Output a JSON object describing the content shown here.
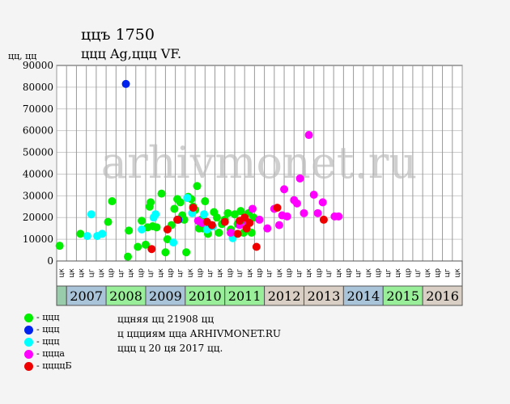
{
  "header": {
    "title": "ццъ 1750",
    "subtitle": "ццц Ag,ццц VF."
  },
  "info": {
    "line1": "ццняя цц 21908 цц",
    "line2": "ц ццциям цца ARHIVMONET.RU",
    "line3": "ццц ц 20 ця 2017 цц."
  },
  "watermark": "arhivmonet.ru",
  "colors": {
    "green": "#00ee00",
    "blue": "#0022ee",
    "cyan": "#00ffff",
    "magenta": "#ff00ff",
    "red": "#ee0000"
  },
  "chart_data": {
    "type": "scatter",
    "ylabel": "цц, цц",
    "ylim": [
      0,
      90000
    ],
    "yticks": [
      0,
      10000,
      20000,
      30000,
      40000,
      50000,
      60000,
      70000,
      80000,
      90000
    ],
    "ytick_labels": [
      "0",
      "10000",
      "20000",
      "30000",
      "40000",
      "50000",
      "60000",
      "70000",
      "80000",
      "90000"
    ],
    "quarter_labels": [
      "цк",
      "цк",
      "цк",
      "цг",
      "цк",
      "цр",
      "цг",
      "цк",
      "цр",
      "цг",
      "цк",
      "цр",
      "цг",
      "цк",
      "цр",
      "цг",
      "цк",
      "цр",
      "цг",
      "цк",
      "цр",
      "цг",
      "цк",
      "цр",
      "цг",
      "цк",
      "цр",
      "цг",
      "цк",
      "цр",
      "цг",
      "цк",
      "цр",
      "цг",
      "цк",
      "цр",
      "цг",
      "цк",
      "цр",
      "цг",
      "цк"
    ],
    "years": [
      {
        "label": "",
        "start": 0,
        "end": 1,
        "color": "#99ccaa"
      },
      {
        "label": "2007",
        "start": 1,
        "end": 5,
        "color": "#a9c4d9"
      },
      {
        "label": "2008",
        "start": 5,
        "end": 9,
        "color": "#99ee99"
      },
      {
        "label": "2009",
        "start": 9,
        "end": 13,
        "color": "#a9c4d9"
      },
      {
        "label": "2010",
        "start": 13,
        "end": 17,
        "color": "#99ee99"
      },
      {
        "label": "2011",
        "start": 17,
        "end": 21,
        "color": "#99ee99"
      },
      {
        "label": "2012",
        "start": 21,
        "end": 25,
        "color": "#d9cfc4"
      },
      {
        "label": "2013",
        "start": 25,
        "end": 29,
        "color": "#d9cfc4"
      },
      {
        "label": "2014",
        "start": 29,
        "end": 33,
        "color": "#a9c4d9"
      },
      {
        "label": "2015",
        "start": 33,
        "end": 37,
        "color": "#99ee99"
      },
      {
        "label": "2016",
        "start": 37,
        "end": 41,
        "color": "#d9cfc4"
      }
    ],
    "series": [
      {
        "name": "- ццц",
        "color": "#00ee00",
        "points": [
          [
            0.3,
            7000
          ],
          [
            2.4,
            12500
          ],
          [
            5.2,
            18000
          ],
          [
            5.6,
            27500
          ],
          [
            7.2,
            2000
          ],
          [
            7.3,
            14000
          ],
          [
            8.2,
            6500
          ],
          [
            8.6,
            18500
          ],
          [
            9.0,
            7500
          ],
          [
            9.2,
            15500
          ],
          [
            9.4,
            25000
          ],
          [
            9.5,
            27000
          ],
          [
            9.7,
            16000
          ],
          [
            10.1,
            15500
          ],
          [
            10.6,
            31000
          ],
          [
            11.0,
            4000
          ],
          [
            11.2,
            10000
          ],
          [
            11.6,
            16500
          ],
          [
            11.9,
            24000
          ],
          [
            12.2,
            28500
          ],
          [
            12.5,
            27000
          ],
          [
            12.7,
            21000
          ],
          [
            12.9,
            19000
          ],
          [
            13.1,
            4000
          ],
          [
            13.3,
            29500
          ],
          [
            13.6,
            28500
          ],
          [
            13.8,
            25000
          ],
          [
            14.0,
            23500
          ],
          [
            14.2,
            34500
          ],
          [
            14.4,
            15000
          ],
          [
            14.6,
            19000
          ],
          [
            14.8,
            15000
          ],
          [
            15.0,
            27500
          ],
          [
            15.3,
            12500
          ],
          [
            15.6,
            16000
          ],
          [
            15.9,
            22500
          ],
          [
            16.2,
            20000
          ],
          [
            16.4,
            13000
          ],
          [
            16.7,
            17000
          ],
          [
            17.0,
            19000
          ],
          [
            17.3,
            22000
          ],
          [
            17.6,
            14500
          ],
          [
            18.0,
            21500
          ],
          [
            18.3,
            17000
          ],
          [
            18.6,
            23000
          ],
          [
            18.9,
            13000
          ],
          [
            19.2,
            17000
          ],
          [
            19.4,
            22000
          ],
          [
            19.7,
            13000
          ],
          [
            19.9,
            20000
          ]
        ]
      },
      {
        "name": "- ццц",
        "color": "#0022ee",
        "points": [
          [
            7.0,
            81500
          ],
          [
            12.3,
            19000
          ]
        ]
      },
      {
        "name": "- ццц",
        "color": "#00ffff",
        "points": [
          [
            3.5,
            21500
          ],
          [
            3.1,
            11500
          ],
          [
            4.1,
            11500
          ],
          [
            4.6,
            12500
          ],
          [
            8.6,
            14500
          ],
          [
            9.8,
            20000
          ],
          [
            10.0,
            21500
          ],
          [
            11.8,
            8500
          ],
          [
            13.2,
            29000
          ],
          [
            13.7,
            22000
          ],
          [
            14.9,
            21500
          ],
          [
            15.2,
            14500
          ],
          [
            15.8,
            16000
          ],
          [
            17.8,
            10500
          ]
        ]
      },
      {
        "name": "- цццa",
        "color": "#ff00ff",
        "points": [
          [
            14.3,
            18500
          ],
          [
            14.7,
            17500
          ],
          [
            17.6,
            13000
          ],
          [
            18.5,
            16500
          ],
          [
            19.3,
            18000
          ],
          [
            19.8,
            24000
          ],
          [
            20.5,
            19000
          ],
          [
            21.3,
            15000
          ],
          [
            22.0,
            24000
          ],
          [
            22.5,
            16500
          ],
          [
            22.8,
            21000
          ],
          [
            23.0,
            33000
          ],
          [
            23.3,
            20500
          ],
          [
            24.0,
            28000
          ],
          [
            24.3,
            26500
          ],
          [
            24.6,
            38000
          ],
          [
            25.0,
            22000
          ],
          [
            25.5,
            58000
          ],
          [
            26.0,
            30500
          ],
          [
            26.4,
            22000
          ],
          [
            26.9,
            27000
          ],
          [
            28.1,
            20500
          ],
          [
            28.5,
            20500
          ]
        ]
      },
      {
        "name": "- ццццБ",
        "color": "#ee0000",
        "points": [
          [
            9.6,
            5500
          ],
          [
            11.2,
            14500
          ],
          [
            12.2,
            19000
          ],
          [
            13.8,
            24500
          ],
          [
            15.2,
            18000
          ],
          [
            15.7,
            16500
          ],
          [
            17.0,
            18000
          ],
          [
            18.3,
            12500
          ],
          [
            18.5,
            18500
          ],
          [
            19.0,
            20000
          ],
          [
            19.2,
            15000
          ],
          [
            19.5,
            17500
          ],
          [
            20.2,
            6500
          ],
          [
            22.3,
            24500
          ],
          [
            27.0,
            19000
          ]
        ]
      }
    ]
  }
}
